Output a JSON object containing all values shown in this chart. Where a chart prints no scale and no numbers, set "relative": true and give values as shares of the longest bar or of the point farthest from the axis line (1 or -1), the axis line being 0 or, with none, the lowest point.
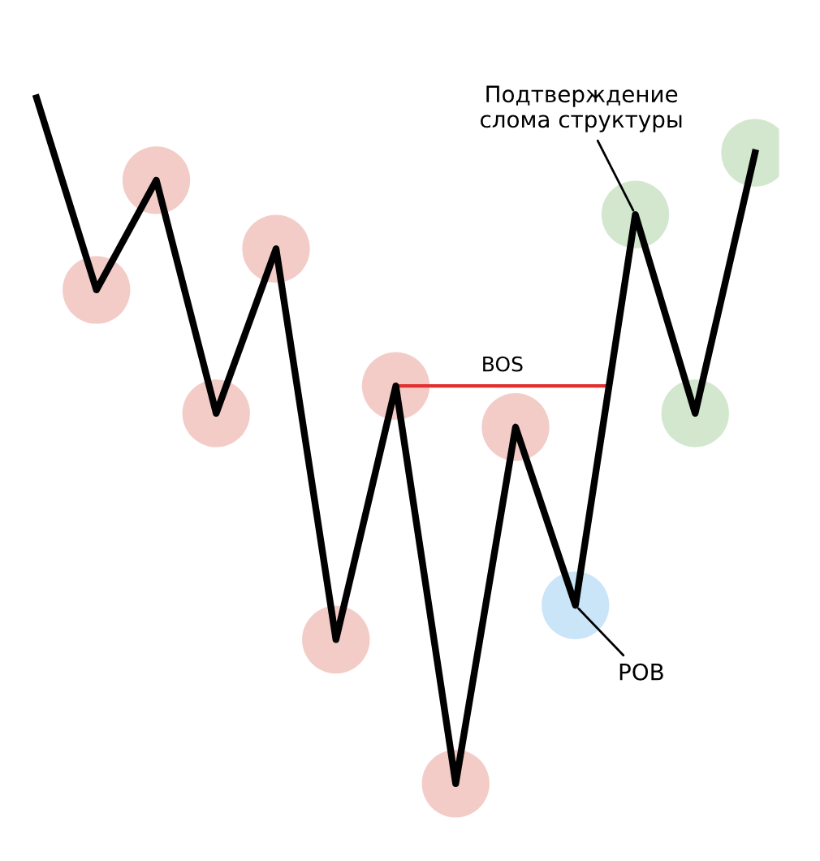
{
  "chart_data": {
    "type": "line",
    "relative": true,
    "categories": [
      null,
      null,
      null,
      null,
      null,
      null,
      null,
      null,
      null,
      null,
      null,
      null,
      null
    ],
    "series": [
      {
        "color": "#000000",
        "marker": "circle",
        "colors": [
          null,
          "#f2c6c1",
          "#f2c6c1",
          "#f2c6c1",
          "#f2c6c1",
          "#f2c6c1",
          "#f2c6c1",
          "#f2c6c1",
          "#f2c6c1",
          "#c4e2f7",
          "#cde4c9",
          "#cde4c9",
          "#cde4c9"
        ],
        "values": [
          1.0,
          0.72,
          0.88,
          0.54,
          0.78,
          0.21,
          0.58,
          0.0,
          0.52,
          0.26,
          0.83,
          0.54,
          0.92
        ]
      }
    ],
    "ref_lines": [
      {
        "axis": "y",
        "value": 0.58,
        "label": "BOS",
        "color": "#e03030"
      }
    ],
    "annotations": [
      "Подтверждение\nслома структуры",
      "POB"
    ]
  }
}
